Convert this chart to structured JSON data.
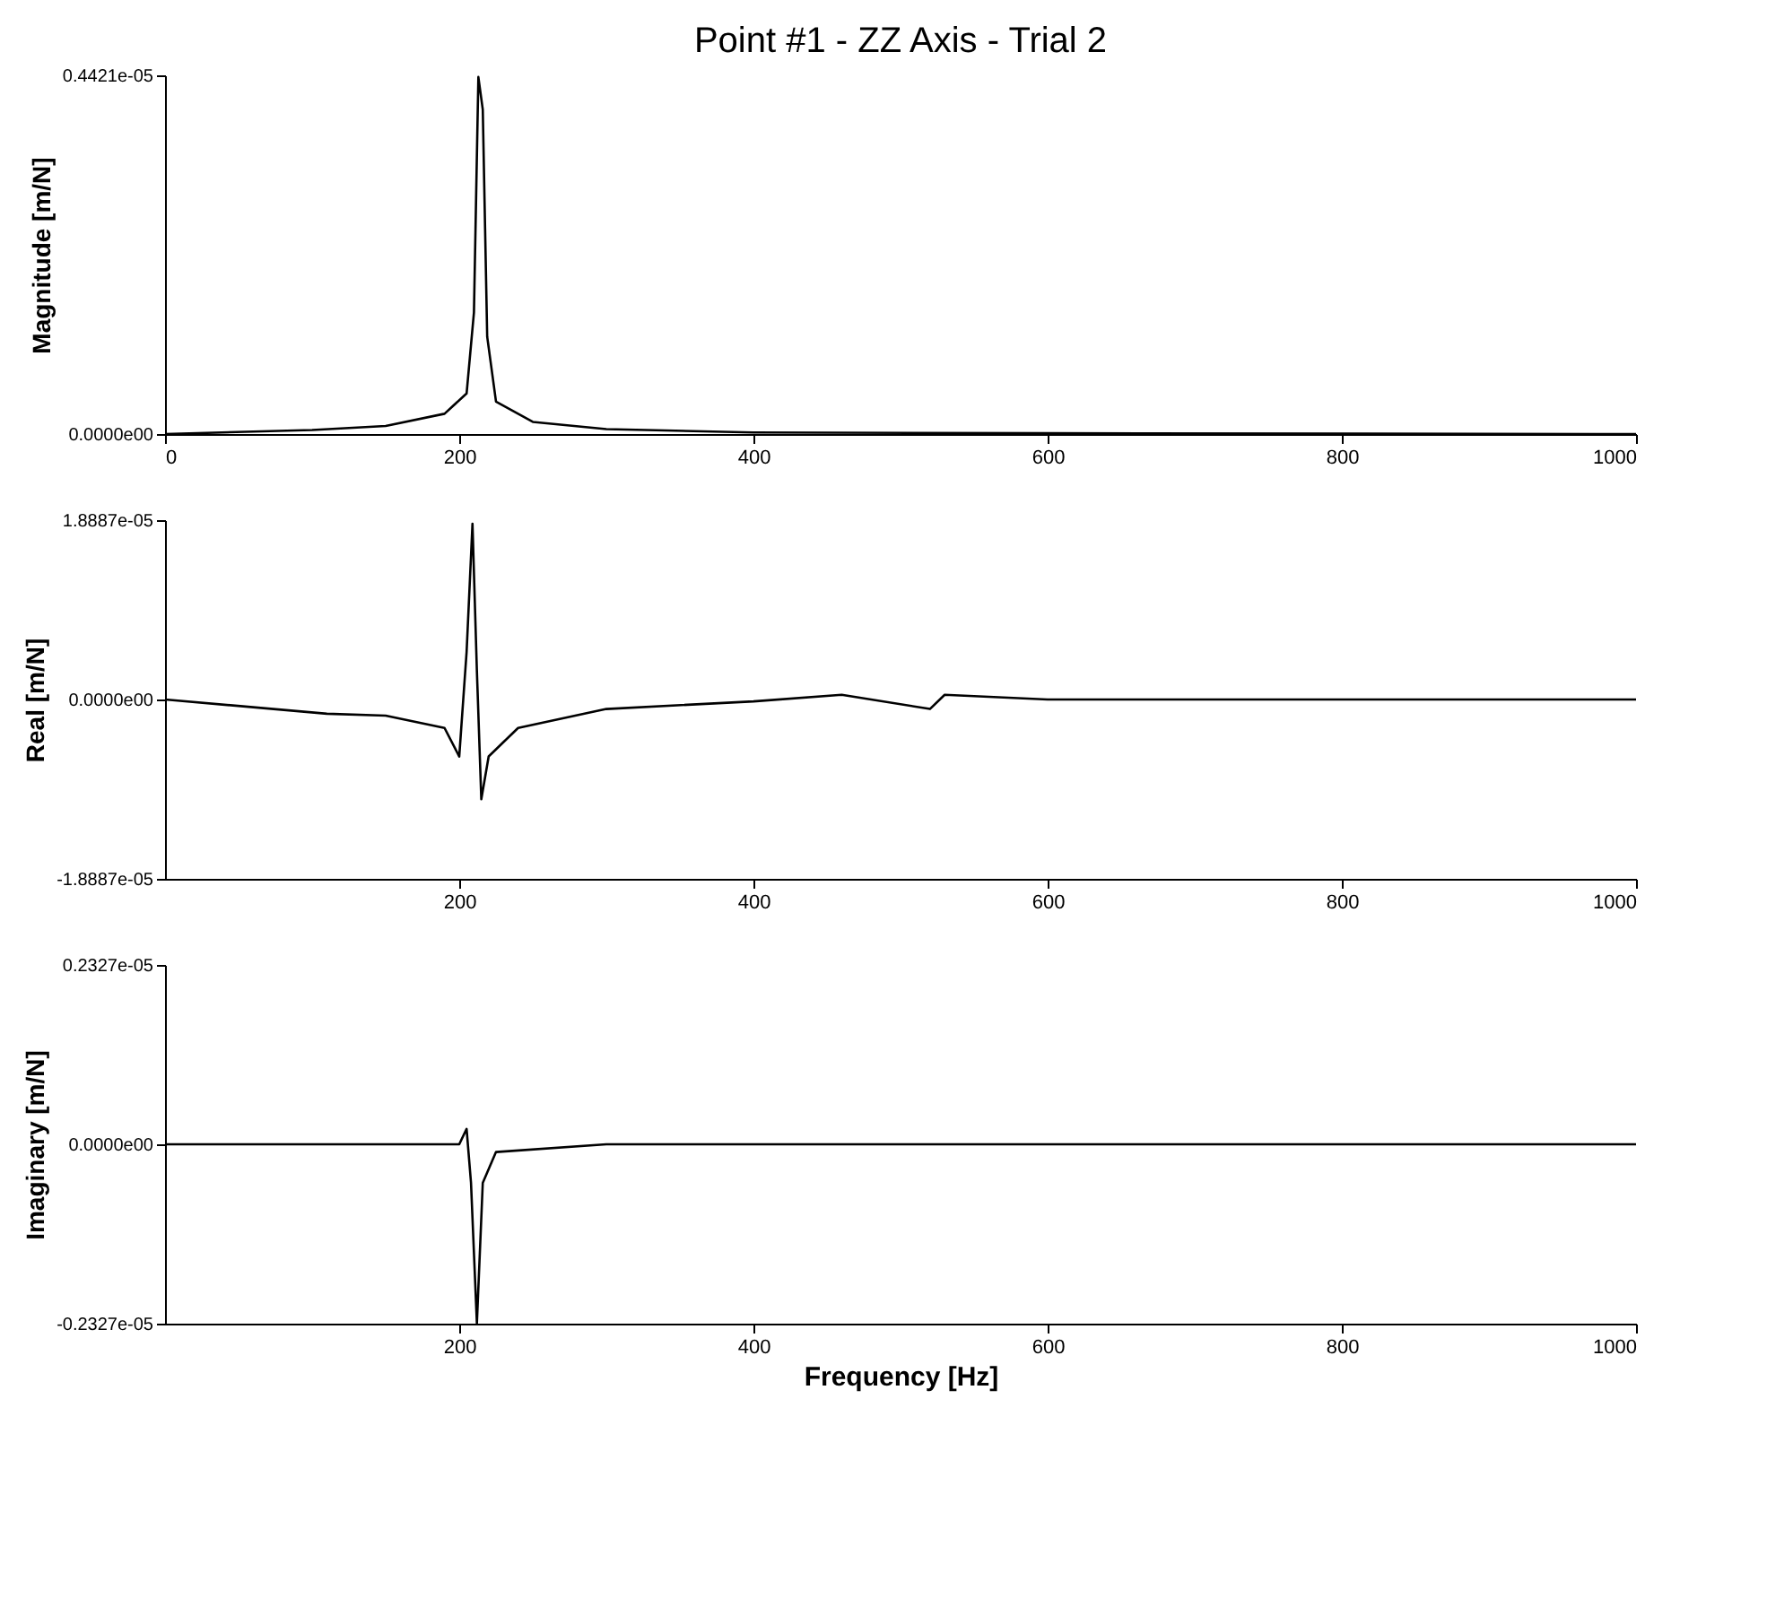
{
  "chart_data": [
    {
      "type": "line",
      "title": "Point #1 - ZZ Axis - Trial 2",
      "ylabel": "Magnitude [m/N]",
      "x": [
        0,
        100,
        150,
        190,
        205,
        210,
        213,
        216,
        219,
        225,
        250,
        300,
        400,
        600,
        1000
      ],
      "series": [
        {
          "color": "#000000",
          "values": [
            0,
            5e-08,
            1e-07,
            2.5e-07,
            5e-07,
            1.5e-06,
            4.4e-06,
            4e-06,
            1.2e-06,
            4e-07,
            1.5e-07,
            6e-08,
            2e-08,
            1e-08,
            0
          ]
        }
      ],
      "xlim": [
        0,
        1000
      ],
      "xticks": [
        0,
        200,
        400,
        600,
        800,
        1000
      ],
      "ylim": [
        0,
        4.421e-06
      ],
      "yticks": [
        {
          "value": 0,
          "label": "0.0000e00"
        },
        {
          "value": 4.421e-06,
          "label": "0.4421e-05"
        }
      ],
      "grid": false
    },
    {
      "type": "line",
      "ylabel": "Real [m/N]",
      "x": [
        0,
        110,
        150,
        190,
        200,
        205,
        209,
        212,
        215,
        220,
        240,
        300,
        400,
        460,
        520,
        530,
        600,
        1000
      ],
      "series": [
        {
          "color": "#000000",
          "values": [
            0,
            -1.5e-06,
            -1.7e-06,
            -3e-06,
            -6e-06,
            5e-06,
            1.85e-05,
            3e-06,
            -1.05e-05,
            -6e-06,
            -3e-06,
            -1e-06,
            -2e-07,
            5e-07,
            -1e-06,
            5e-07,
            0,
            0
          ]
        }
      ],
      "xlim": [
        0,
        1000
      ],
      "xticks": [
        200,
        400,
        600,
        800,
        1000
      ],
      "ylim": [
        -1.8887e-05,
        1.8887e-05
      ],
      "yticks": [
        {
          "value": -1.8887e-05,
          "label": "-1.8887e-05"
        },
        {
          "value": 0,
          "label": "0.0000e00"
        },
        {
          "value": 1.8887e-05,
          "label": "1.8887e-05"
        }
      ],
      "grid": false
    },
    {
      "type": "line",
      "ylabel": "Imaginary [m/N]",
      "xlabel": "Frequency [Hz]",
      "x": [
        0,
        200,
        205,
        208,
        212,
        216,
        225,
        300,
        1000
      ],
      "series": [
        {
          "color": "#000000",
          "values": [
            0,
            0,
            2e-07,
            -5e-07,
            -2.32e-06,
            -5e-07,
            -1e-07,
            0,
            0
          ]
        }
      ],
      "xlim": [
        0,
        1000
      ],
      "xticks": [
        200,
        400,
        600,
        800,
        1000
      ],
      "ylim": [
        -2.327e-06,
        2.327e-06
      ],
      "yticks": [
        {
          "value": -2.327e-06,
          "label": "-0.2327e-05"
        },
        {
          "value": 0,
          "label": "0.0000e00"
        },
        {
          "value": 2.327e-06,
          "label": "0.2327e-05"
        }
      ],
      "grid": false
    }
  ]
}
